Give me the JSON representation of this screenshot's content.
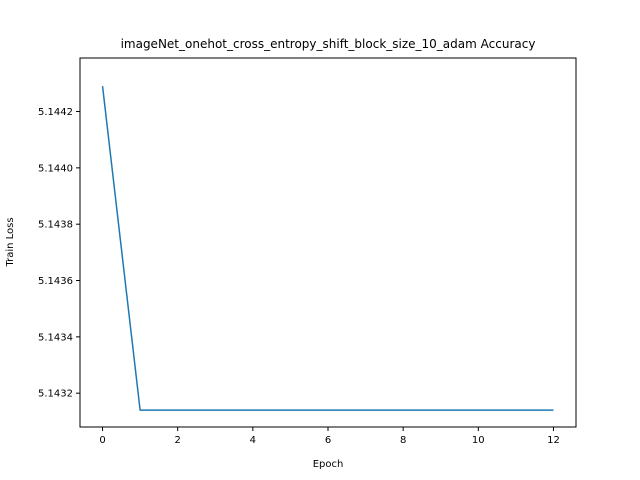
{
  "chart_data": {
    "type": "line",
    "title": "imageNet_onehot_cross_entropy_shift_block_size_10_adam Accuracy",
    "xlabel": "Epoch",
    "ylabel": "Train Loss",
    "xlim": [
      -0.6,
      12.6
    ],
    "ylim": [
      5.14308,
      5.14439
    ],
    "xticks": [
      0,
      2,
      4,
      6,
      8,
      10,
      12
    ],
    "xtick_labels": [
      "0",
      "2",
      "4",
      "6",
      "8",
      "10",
      "12"
    ],
    "yticks": [
      5.1432,
      5.1434,
      5.1436,
      5.1438,
      5.144,
      5.1442
    ],
    "ytick_labels": [
      "5.1432",
      "5.1434",
      "5.1436",
      "5.1438",
      "5.1440",
      "5.1442"
    ],
    "grid": false,
    "series": [
      {
        "color": "#1f77b4",
        "x": [
          0,
          1,
          2,
          3,
          4,
          5,
          6,
          7,
          8,
          9,
          10,
          11,
          12
        ],
        "y": [
          5.14429,
          5.14314,
          5.14314,
          5.14314,
          5.14314,
          5.14314,
          5.14314,
          5.14314,
          5.14314,
          5.14314,
          5.14314,
          5.14314,
          5.14314
        ]
      }
    ]
  }
}
